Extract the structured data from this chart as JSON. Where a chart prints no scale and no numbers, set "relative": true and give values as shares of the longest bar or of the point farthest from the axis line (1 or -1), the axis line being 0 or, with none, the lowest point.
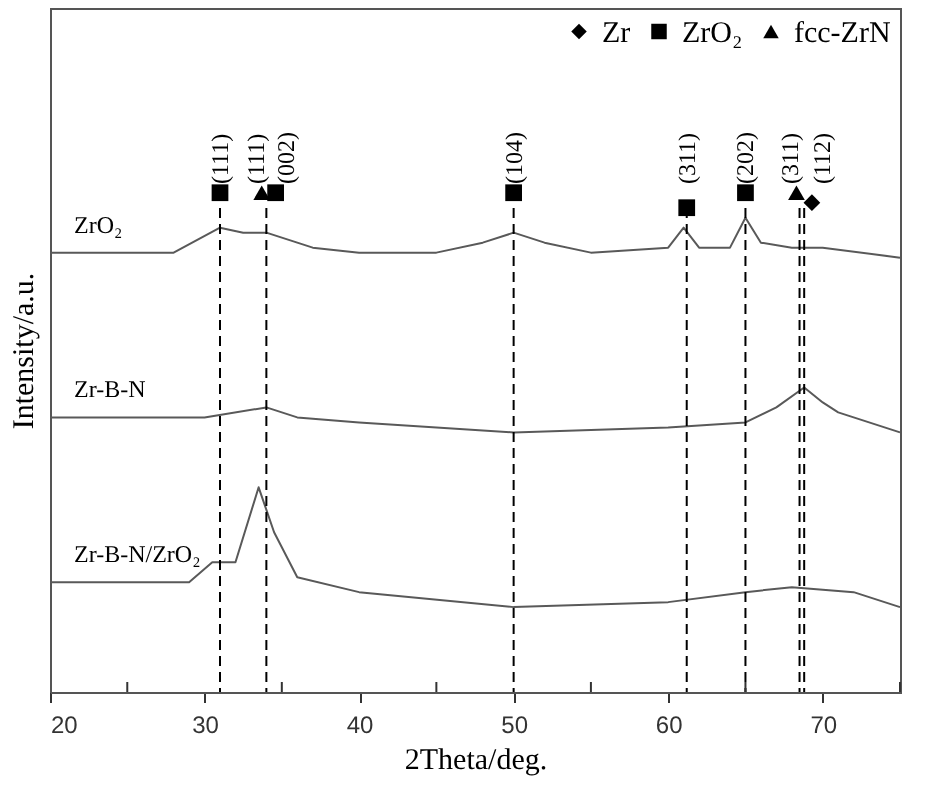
{
  "chart_data": {
    "type": "line",
    "relative": true,
    "xlabel": "2Theta/deg.",
    "ylabel": "Intensity/a.u.",
    "xlim": [
      20,
      75
    ],
    "xticks": [
      20,
      {
        "value": 25,
        "label": null
      },
      30,
      {
        "value": 35,
        "label": null
      },
      40,
      {
        "value": 45,
        "label": null
      },
      50,
      {
        "value": 55,
        "label": null
      },
      60,
      {
        "value": 65,
        "label": null
      },
      70,
      {
        "value": 75,
        "label": null
      }
    ],
    "tick_labels": "x",
    "grid": false,
    "legend": "top right",
    "line_style": "solid",
    "series": [
      {
        "name": "ZrO₂",
        "color": "#595959",
        "x": [
          20,
          28,
          31,
          32.5,
          34,
          37,
          40,
          45,
          48,
          50,
          52,
          55,
          60,
          61,
          62,
          64,
          65,
          66,
          68,
          70,
          75
        ],
        "values": [
          0.88,
          0.88,
          0.93,
          0.92,
          0.92,
          0.89,
          0.88,
          0.88,
          0.9,
          0.92,
          0.9,
          0.88,
          0.89,
          0.93,
          0.89,
          0.89,
          0.95,
          0.9,
          0.89,
          0.89,
          0.87
        ]
      },
      {
        "name": "Zr-B-N",
        "color": "#595959",
        "x": [
          20,
          30,
          34,
          36,
          40,
          50,
          60,
          65,
          67,
          68.8,
          70,
          71,
          75
        ],
        "values": [
          0.55,
          0.55,
          0.57,
          0.55,
          0.54,
          0.52,
          0.53,
          0.54,
          0.57,
          0.61,
          0.58,
          0.56,
          0.52
        ]
      },
      {
        "name": "Zr-B-N/ZrO₂",
        "color": "#595959",
        "x": [
          20,
          29,
          30.5,
          32,
          33.5,
          34.5,
          36,
          40,
          50,
          60,
          65,
          68,
          72,
          75
        ],
        "values": [
          0.22,
          0.22,
          0.26,
          0.26,
          0.41,
          0.32,
          0.23,
          0.2,
          0.17,
          0.18,
          0.2,
          0.21,
          0.2,
          0.17
        ]
      },
      {
        "name": "Zr",
        "type": "scatter",
        "marker": "diamond",
        "color": "#000000",
        "x": [
          69.3
        ],
        "values": [
          0.98
        ]
      },
      {
        "name": "ZrO₂",
        "type": "scatter",
        "marker": "square",
        "color": "#000000",
        "x": [
          31,
          34.6,
          50,
          61.2,
          65
        ],
        "values": [
          1.0,
          1.0,
          1.0,
          0.97,
          1.0
        ]
      },
      {
        "name": "fcc-ZrN",
        "type": "scatter",
        "marker": "triangle",
        "color": "#000000",
        "x": [
          33.7,
          68.3
        ],
        "values": [
          1.0,
          1.0
        ]
      }
    ],
    "ref_lines": [
      {
        "axis": "x",
        "value": 31,
        "line_style": "dashed"
      },
      {
        "axis": "x",
        "value": 34,
        "line_style": "dashed"
      },
      {
        "axis": "x",
        "value": 50,
        "line_style": "dashed"
      },
      {
        "axis": "x",
        "value": 61.2,
        "line_style": "dashed"
      },
      {
        "axis": "x",
        "value": 65,
        "line_style": "dashed"
      },
      {
        "axis": "x",
        "value": 68.5,
        "line_style": "dashed"
      },
      {
        "axis": "x",
        "value": 68.8,
        "line_style": "dashed"
      }
    ],
    "annotations": [
      "(111)",
      "(111)",
      "(002)",
      "(104)",
      "(311)",
      "(202)",
      "(311)",
      "(112)"
    ]
  }
}
